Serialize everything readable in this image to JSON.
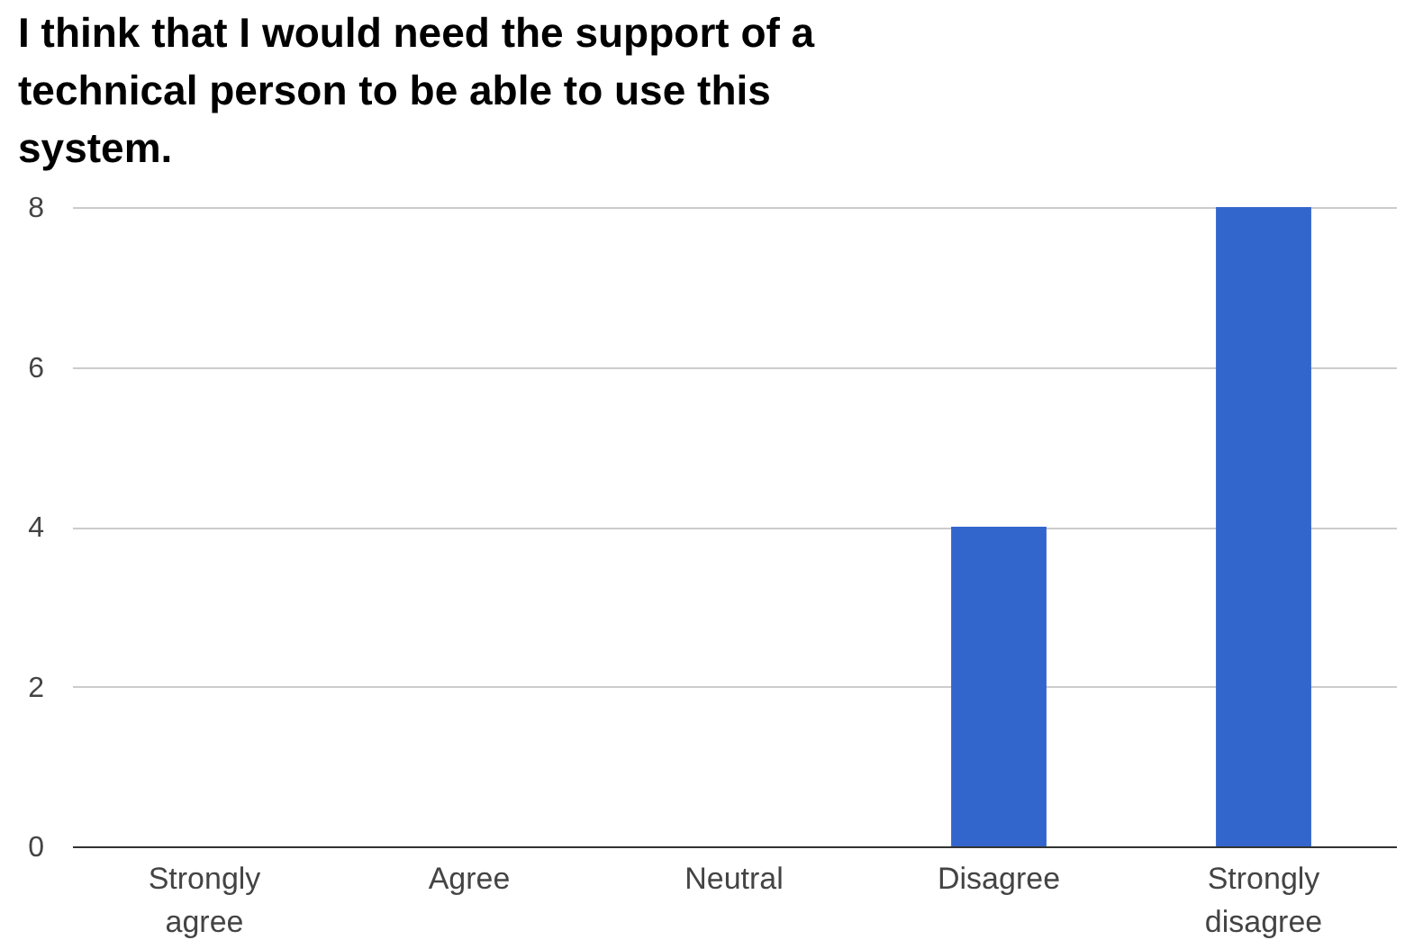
{
  "chart_data": {
    "type": "bar",
    "title": "I think that I would need the support of a technical person to be able to use this system.",
    "categories": [
      "Strongly agree",
      "Agree",
      "Neutral",
      "Disagree",
      "Strongly disagree"
    ],
    "values": [
      0,
      0,
      0,
      4,
      8
    ],
    "color": "#3366cc",
    "ylim": [
      0,
      8
    ],
    "yticks": [
      0,
      2,
      4,
      6,
      8
    ],
    "grid": "y"
  }
}
